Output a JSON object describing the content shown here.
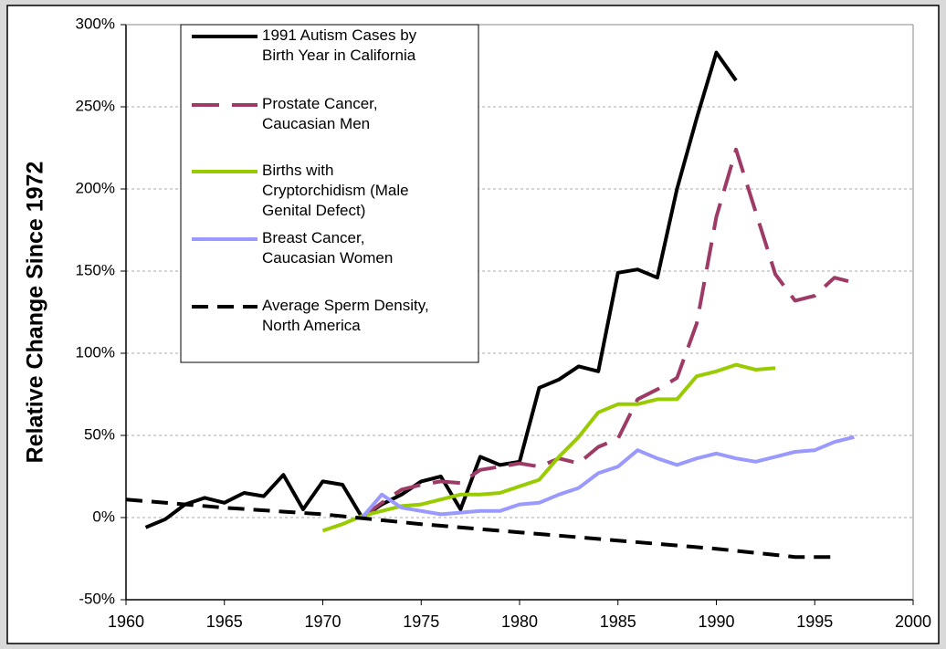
{
  "chart_data": {
    "type": "line",
    "y_label": "Relative Change Since 1972",
    "xlim": [
      1960,
      2000
    ],
    "xticks": [
      1960,
      1965,
      1970,
      1975,
      1980,
      1985,
      1990,
      1995,
      2000
    ],
    "ylim": [
      -50,
      300
    ],
    "yticks": [
      {
        "value": -50,
        "label": "-50%"
      },
      {
        "value": 0,
        "label": "0%"
      },
      {
        "value": 50,
        "label": "50%"
      },
      {
        "value": 100,
        "label": "100%"
      },
      {
        "value": 150,
        "label": "150%"
      },
      {
        "value": 200,
        "label": "200%"
      },
      {
        "value": 250,
        "label": "250%"
      },
      {
        "value": 300,
        "label": "300%"
      }
    ],
    "grid": true,
    "legend": "top-left",
    "series": [
      {
        "name": "1991 Autism Cases by\nBirth Year in California",
        "color": "#000000",
        "line_style": "solid",
        "x": [
          1961,
          1962,
          1963,
          1964,
          1965,
          1966,
          1967,
          1968,
          1969,
          1970,
          1971,
          1972,
          1973,
          1974,
          1975,
          1976,
          1977,
          1978,
          1979,
          1980,
          1981,
          1982,
          1983,
          1984,
          1985,
          1986,
          1987,
          1988,
          1989,
          1990,
          1991
        ],
        "values": [
          -6,
          -1,
          8,
          12,
          9,
          15,
          13,
          26,
          5,
          22,
          20,
          0,
          8,
          14,
          22,
          25,
          5,
          37,
          32,
          34,
          79,
          84,
          92,
          89,
          149,
          151,
          146,
          200,
          243,
          283,
          266
        ]
      },
      {
        "name": "Prostate Cancer,\nCaucasian Men",
        "color": "#9e3a66",
        "line_style": "dashed",
        "x": [
          1972,
          1973,
          1974,
          1975,
          1976,
          1977,
          1978,
          1979,
          1980,
          1981,
          1982,
          1983,
          1984,
          1985,
          1986,
          1987,
          1988,
          1989,
          1990,
          1991,
          1992,
          1993,
          1994,
          1995,
          1996,
          1997
        ],
        "values": [
          0,
          9,
          17,
          20,
          22,
          21,
          29,
          31,
          33,
          31,
          36,
          33,
          43,
          48,
          72,
          78,
          85,
          118,
          183,
          224,
          186,
          148,
          132,
          135,
          146,
          143
        ]
      },
      {
        "name": "Births with\nCryptorchidism (Male\nGenital Defect)",
        "color": "#99cc00",
        "line_style": "solid",
        "x": [
          1970,
          1971,
          1972,
          1973,
          1974,
          1975,
          1976,
          1977,
          1978,
          1979,
          1980,
          1981,
          1982,
          1983,
          1984,
          1985,
          1986,
          1987,
          1988,
          1989,
          1990,
          1991,
          1992,
          1993
        ],
        "values": [
          -8,
          -4,
          1,
          4,
          7,
          8,
          11,
          14,
          14,
          15,
          19,
          23,
          37,
          49,
          64,
          69,
          69,
          72,
          72,
          86,
          89,
          93,
          90,
          91
        ]
      },
      {
        "name": "Breast Cancer,\nCaucasian Women",
        "color": "#9999ff",
        "line_style": "solid",
        "x": [
          1972,
          1973,
          1974,
          1975,
          1976,
          1977,
          1978,
          1979,
          1980,
          1981,
          1982,
          1983,
          1984,
          1985,
          1986,
          1987,
          1988,
          1989,
          1990,
          1991,
          1992,
          1993,
          1994,
          1995,
          1996,
          1997
        ],
        "values": [
          0,
          14,
          6,
          4,
          2,
          3,
          4,
          4,
          8,
          9,
          14,
          18,
          27,
          31,
          41,
          36,
          32,
          36,
          39,
          36,
          34,
          37,
          40,
          41,
          46,
          49
        ]
      },
      {
        "name": "Average Sperm Density,\nNorth America",
        "color": "#000000",
        "line_style": "dashed",
        "x": [
          1960,
          1965,
          1970,
          1975,
          1980,
          1985,
          1990,
          1994,
          1996
        ],
        "values": [
          11,
          6,
          2,
          -4,
          -9,
          -14,
          -19,
          -24,
          -24
        ]
      }
    ]
  }
}
